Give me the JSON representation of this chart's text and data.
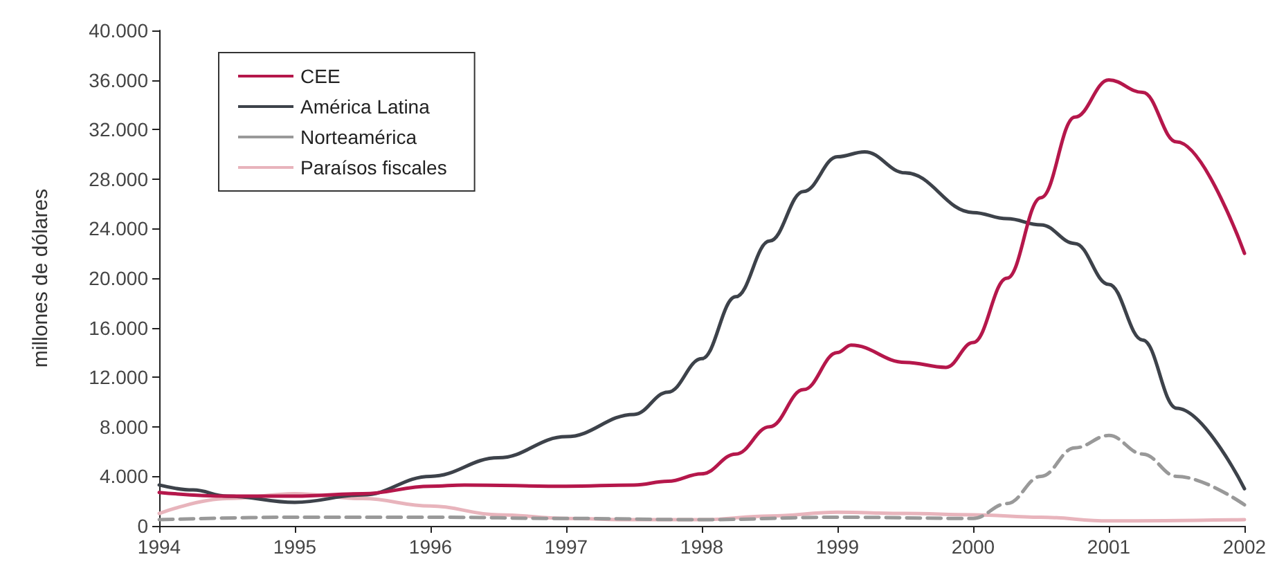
{
  "chart_data": {
    "type": "line",
    "ylabel": "millones de dólares",
    "xlim": [
      1994,
      2002
    ],
    "xticks": [
      1994,
      1995,
      1996,
      1997,
      1998,
      1999,
      2000,
      2001,
      2002
    ],
    "ylim": [
      0,
      40000
    ],
    "yticks": [
      0,
      {
        "value": 4000,
        "label": "4.000"
      },
      {
        "value": 8000,
        "label": "8.000"
      },
      {
        "value": 12000,
        "label": "12.000"
      },
      {
        "value": 16000,
        "label": "16.000"
      },
      {
        "value": 20000,
        "label": "20.000"
      },
      {
        "value": 24000,
        "label": "24.000"
      },
      {
        "value": 28000,
        "label": "28.000"
      },
      {
        "value": 32000,
        "label": "32.000"
      },
      {
        "value": 36000,
        "label": "36.000"
      },
      {
        "value": 40000,
        "label": "40.000"
      }
    ],
    "grid": false,
    "legend": "top left",
    "marker": "none",
    "series": [
      {
        "name": "CEE",
        "color": "#b5174b",
        "x": [
          1994,
          1994.5,
          1995,
          1995.5,
          1996,
          1996.25,
          1997,
          1997.5,
          1997.75,
          1998,
          1998.25,
          1998.5,
          1998.75,
          1999,
          1999.1,
          1999.5,
          1999.8,
          2000,
          2000.25,
          2000.5,
          2000.75,
          2001,
          2001.25,
          2001.5,
          2002
        ],
        "values": [
          2700,
          2400,
          2400,
          2600,
          3200,
          3300,
          3200,
          3300,
          3600,
          4200,
          5800,
          8000,
          11000,
          14000,
          14600,
          13200,
          12800,
          14800,
          20000,
          26500,
          33000,
          36000,
          35000,
          31000,
          22000
        ]
      },
      {
        "name": "América Latina",
        "color": "#3d424a",
        "x": [
          1994,
          1994.25,
          1994.5,
          1995,
          1995.5,
          1996,
          1996.5,
          1997,
          1997.5,
          1997.75,
          1998,
          1998.25,
          1998.5,
          1998.75,
          1999,
          1999.2,
          1999.5,
          2000,
          2000.25,
          2000.5,
          2000.75,
          2001,
          2001.25,
          2001.5,
          2002
        ],
        "values": [
          3300,
          2900,
          2400,
          1900,
          2500,
          4000,
          5500,
          7200,
          9000,
          10800,
          13500,
          18500,
          23000,
          27000,
          29800,
          30200,
          28500,
          25300,
          24800,
          24300,
          22800,
          19500,
          15000,
          9500,
          3000
        ]
      },
      {
        "name": "Norteamérica",
        "color": "#999999",
        "line_style": "dashed",
        "x": [
          1994,
          1995,
          1996,
          1997,
          1998,
          1999,
          2000,
          2000.25,
          2000.5,
          2000.75,
          2001,
          2001.25,
          2001.5,
          2002
        ],
        "values": [
          500,
          700,
          700,
          600,
          500,
          700,
          600,
          1800,
          4000,
          6300,
          7300,
          5800,
          4000,
          1700
        ]
      },
      {
        "name": "Paraísos fiscales",
        "color": "#e8b4bc",
        "x": [
          1994,
          1994.5,
          1995,
          1995.5,
          1996,
          1996.5,
          1997,
          1997.5,
          1998,
          1998.5,
          1999,
          1999.5,
          2000,
          2000.5,
          2001,
          2002
        ],
        "values": [
          1000,
          2200,
          2600,
          2200,
          1600,
          900,
          600,
          500,
          500,
          800,
          1100,
          1000,
          900,
          700,
          400,
          500
        ]
      }
    ]
  }
}
